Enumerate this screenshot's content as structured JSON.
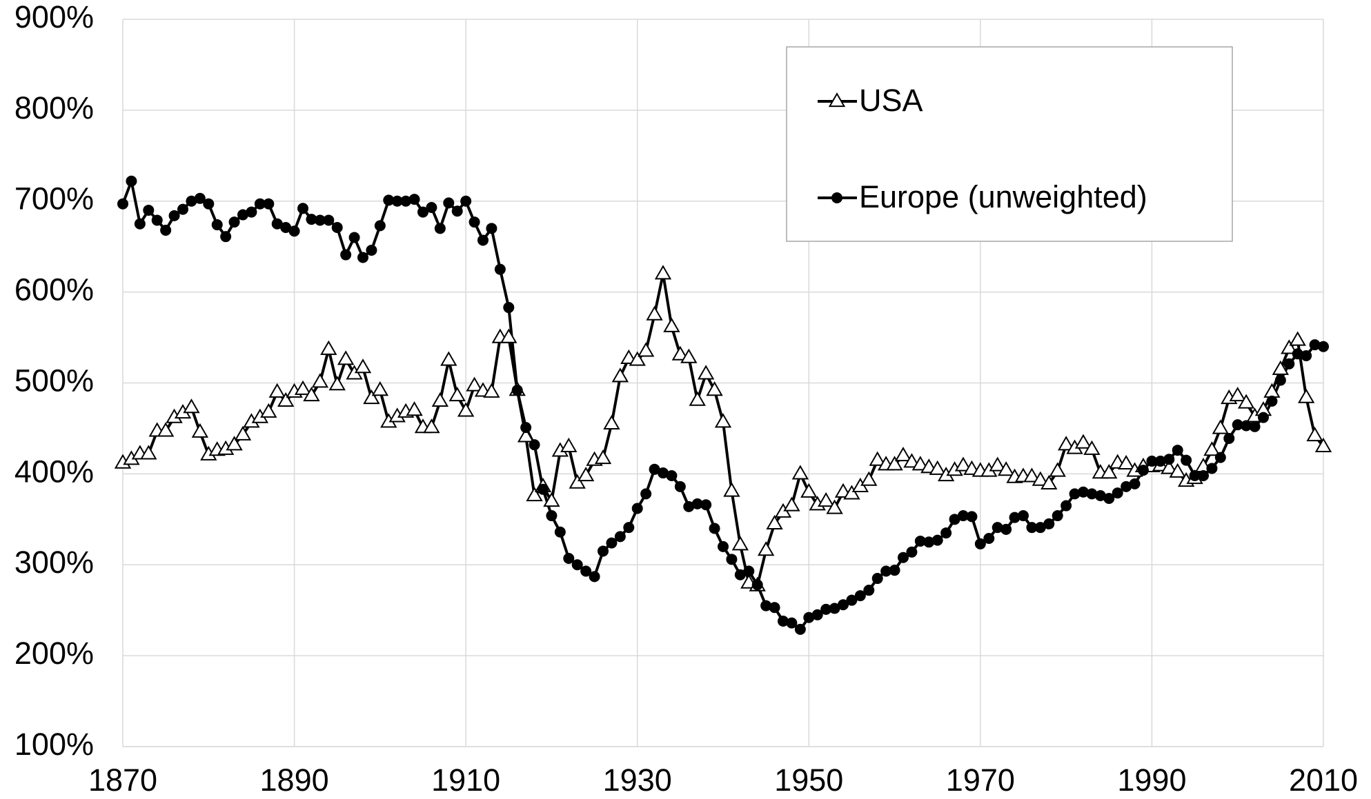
{
  "chart_data": {
    "type": "line",
    "x": [
      1870,
      1871,
      1872,
      1873,
      1874,
      1875,
      1876,
      1877,
      1878,
      1879,
      1880,
      1881,
      1882,
      1883,
      1884,
      1885,
      1886,
      1887,
      1888,
      1889,
      1890,
      1891,
      1892,
      1893,
      1894,
      1895,
      1896,
      1897,
      1898,
      1899,
      1900,
      1901,
      1902,
      1903,
      1904,
      1905,
      1906,
      1907,
      1908,
      1909,
      1910,
      1911,
      1912,
      1913,
      1914,
      1915,
      1916,
      1917,
      1918,
      1919,
      1920,
      1921,
      1922,
      1923,
      1924,
      1925,
      1926,
      1927,
      1928,
      1929,
      1930,
      1931,
      1932,
      1933,
      1934,
      1935,
      1936,
      1937,
      1938,
      1939,
      1940,
      1941,
      1942,
      1943,
      1944,
      1945,
      1946,
      1947,
      1948,
      1949,
      1950,
      1951,
      1952,
      1953,
      1954,
      1955,
      1956,
      1957,
      1958,
      1959,
      1960,
      1961,
      1962,
      1963,
      1964,
      1965,
      1966,
      1967,
      1968,
      1969,
      1970,
      1971,
      1972,
      1973,
      1974,
      1975,
      1976,
      1977,
      1978,
      1979,
      1980,
      1981,
      1982,
      1983,
      1984,
      1985,
      1986,
      1987,
      1988,
      1989,
      1990,
      1991,
      1992,
      1993,
      1994,
      1995,
      1996,
      1997,
      1998,
      1999,
      2000,
      2001,
      2002,
      2003,
      2004,
      2005,
      2006,
      2007,
      2008,
      2009,
      2010
    ],
    "series": [
      {
        "name": "USA",
        "color": "#000000",
        "marker": "triangle",
        "values": [
          412,
          416,
          422,
          422,
          447,
          447,
          462,
          467,
          473,
          446,
          421,
          426,
          427,
          432,
          443,
          457,
          462,
          468,
          490,
          480,
          490,
          493,
          486,
          501,
          537,
          498,
          526,
          510,
          517,
          483,
          492,
          457,
          463,
          468,
          470,
          451,
          451,
          480,
          525,
          486,
          469,
          497,
          491,
          490,
          550,
          550,
          492,
          441,
          376,
          386,
          370,
          425,
          430,
          390,
          398,
          415,
          417,
          455,
          507,
          527,
          525,
          535,
          575,
          620,
          562,
          531,
          528,
          481,
          510,
          492,
          457,
          381,
          322,
          280,
          277,
          316,
          345,
          358,
          365,
          400,
          380,
          366,
          370,
          362,
          380,
          378,
          386,
          393,
          415,
          410,
          410,
          420,
          413,
          410,
          407,
          405,
          398,
          404,
          409,
          405,
          403,
          403,
          409,
          404,
          396,
          397,
          397,
          393,
          389,
          403,
          432,
          428,
          434,
          427,
          401,
          401,
          412,
          411,
          403,
          408,
          408,
          409,
          406,
          402,
          392,
          395,
          408,
          426,
          450,
          483,
          486,
          478,
          463,
          470,
          490,
          515,
          538,
          547,
          484,
          442,
          430
        ]
      },
      {
        "name": "Europe (unweighted)",
        "color": "#000000",
        "marker": "circle",
        "values": [
          697,
          722,
          675,
          690,
          679,
          668,
          684,
          691,
          700,
          703,
          697,
          674,
          661,
          677,
          685,
          688,
          697,
          697,
          675,
          671,
          667,
          692,
          680,
          679,
          679,
          671,
          641,
          660,
          638,
          646,
          673,
          701,
          700,
          700,
          702,
          688,
          693,
          670,
          698,
          689,
          700,
          677,
          657,
          670,
          625,
          583,
          492,
          451,
          432,
          383,
          354,
          336,
          307,
          300,
          293,
          287,
          315,
          324,
          331,
          341,
          362,
          378,
          405,
          401,
          398,
          386,
          364,
          367,
          366,
          340,
          320,
          306,
          289,
          293,
          278,
          255,
          253,
          238,
          236,
          229,
          242,
          245,
          251,
          252,
          256,
          261,
          266,
          272,
          285,
          293,
          294,
          308,
          314,
          326,
          325,
          327,
          335,
          350,
          354,
          353,
          323,
          329,
          341,
          339,
          352,
          354,
          341,
          341,
          345,
          354,
          365,
          378,
          380,
          378,
          376,
          373,
          379,
          386,
          389,
          404,
          414,
          414,
          416,
          426,
          415,
          398,
          398,
          406,
          418,
          439,
          454,
          453,
          452,
          462,
          480,
          503,
          521,
          532,
          530,
          542,
          540
        ]
      }
    ],
    "xlim": [
      1870,
      2010
    ],
    "xticks": [
      1870,
      1890,
      1910,
      1930,
      1950,
      1970,
      1990,
      2010
    ],
    "ylim": [
      100,
      900
    ],
    "yticks": [
      {
        "value": 100,
        "label": "100%"
      },
      {
        "value": 200,
        "label": "200%"
      },
      {
        "value": 300,
        "label": "300%"
      },
      {
        "value": 400,
        "label": "400%"
      },
      {
        "value": 500,
        "label": "500%"
      },
      {
        "value": 600,
        "label": "600%"
      },
      {
        "value": 700,
        "label": "700%"
      },
      {
        "value": 800,
        "label": "800%"
      },
      {
        "value": 900,
        "label": "900%"
      }
    ],
    "grid": true,
    "legend": "upper right"
  }
}
